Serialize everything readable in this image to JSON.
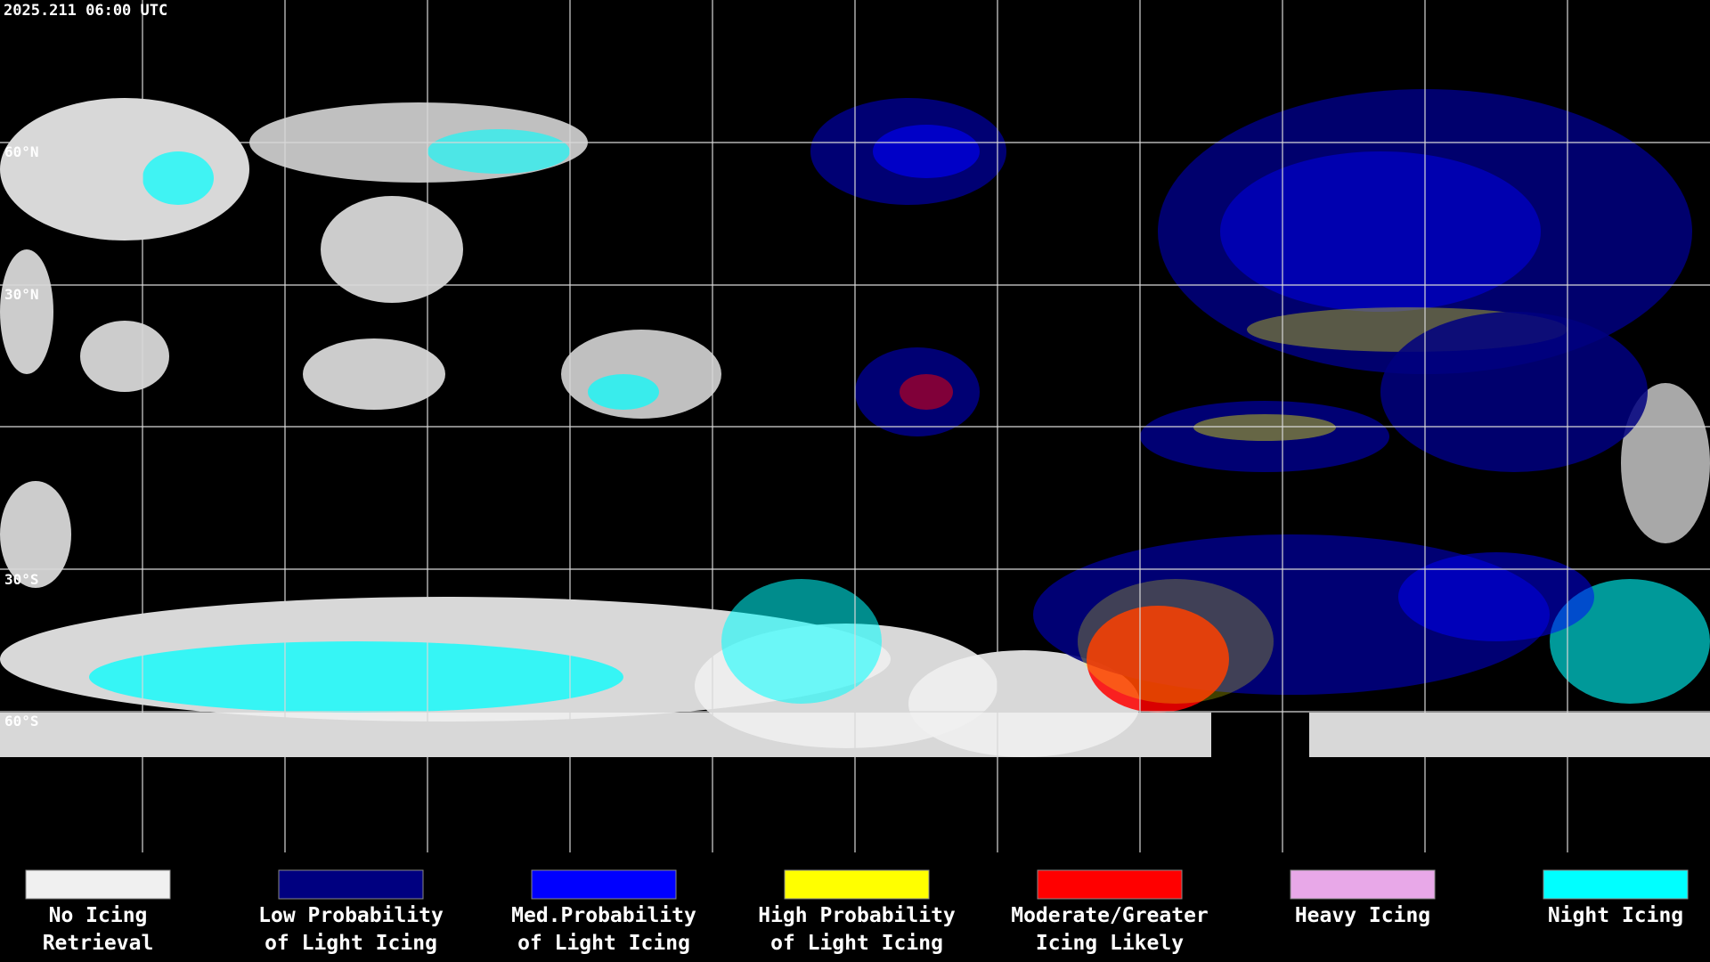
{
  "title": "2025.211 06:00 UTC",
  "lat_labels": [
    "60°N",
    "30°N",
    "30°S",
    "60°S"
  ],
  "legend": [
    {
      "lines": [
        "No Icing",
        "Retrieval"
      ],
      "color": "#f0f0f0"
    },
    {
      "lines": [
        "Low Probability",
        "of Light Icing"
      ],
      "color": "#000080"
    },
    {
      "lines": [
        "Med.Probability",
        "of Light Icing"
      ],
      "color": "#0000ff"
    },
    {
      "lines": [
        "High Probability",
        "of Light Icing"
      ],
      "color": "#ffff00"
    },
    {
      "lines": [
        "Moderate/Greater",
        "Icing Likely"
      ],
      "color": "#ff0000"
    },
    {
      "lines": [
        "Heavy Icing"
      ],
      "color": "#e8a8e8"
    },
    {
      "lines": [
        "Night Icing"
      ],
      "color": "#00ffff"
    }
  ]
}
